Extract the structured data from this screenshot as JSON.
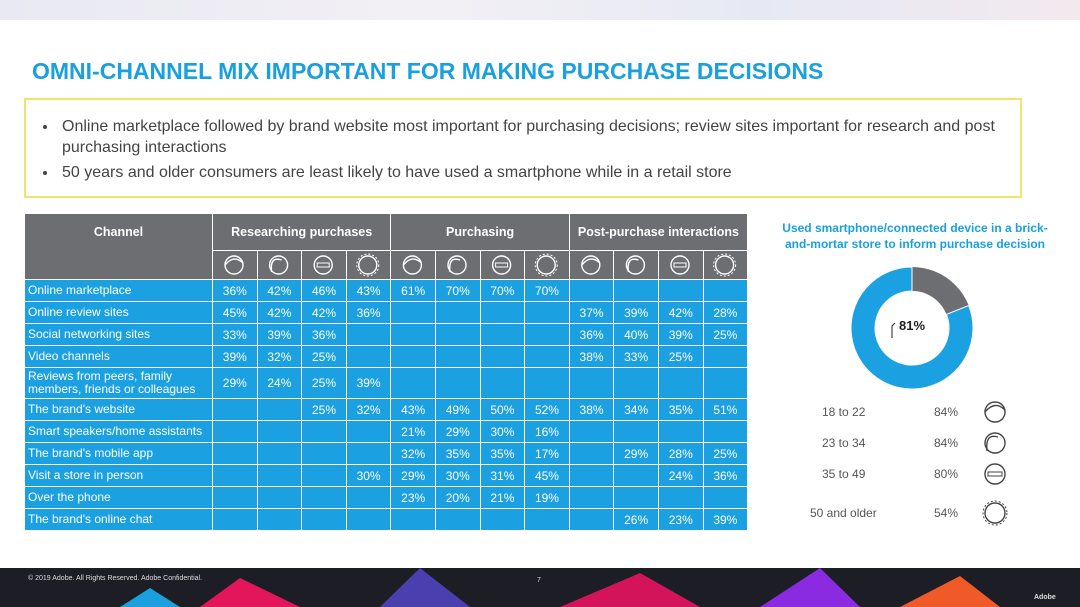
{
  "title": "OMNI-CHANNEL MIX IMPORTANT FOR MAKING PURCHASE DECISIONS",
  "bullets": [
    "Online marketplace followed by brand website most important for purchasing decisions; review sites important for research and post purchasing interactions",
    "50 years and older consumers are least likely to have used a smartphone while in a retail store"
  ],
  "table": {
    "channel_header": "Channel",
    "groups": [
      "Researching purchases",
      "Purchasing",
      "Post-purchase interactions"
    ],
    "rows": [
      {
        "label": "Online marketplace",
        "values": [
          "36%",
          "42%",
          "46%",
          "43%",
          "61%",
          "70%",
          "70%",
          "70%",
          null,
          null,
          null,
          null
        ]
      },
      {
        "label": "Online review sites",
        "values": [
          "45%",
          "42%",
          "42%",
          "36%",
          null,
          null,
          null,
          null,
          "37%",
          "39%",
          "42%",
          "28%"
        ]
      },
      {
        "label": "Social networking sites",
        "values": [
          "33%",
          "39%",
          "36%",
          null,
          null,
          null,
          null,
          null,
          "36%",
          "40%",
          "39%",
          "25%"
        ]
      },
      {
        "label": "Video channels",
        "values": [
          "39%",
          "32%",
          "25%",
          null,
          null,
          null,
          null,
          null,
          "38%",
          "33%",
          "25%",
          null
        ]
      },
      {
        "label": "Reviews from peers, family members, friends or colleagues",
        "values": [
          "29%",
          "24%",
          "25%",
          "39%",
          null,
          null,
          null,
          null,
          null,
          null,
          null,
          null
        ]
      },
      {
        "label": "The brand's website",
        "values": [
          null,
          null,
          "25%",
          "32%",
          "43%",
          "49%",
          "50%",
          "52%",
          "38%",
          "34%",
          "35%",
          "51%"
        ]
      },
      {
        "label": "Smart speakers/home assistants",
        "values": [
          null,
          null,
          null,
          null,
          "21%",
          "29%",
          "30%",
          "16%",
          null,
          null,
          null,
          null
        ]
      },
      {
        "label": "The brand's mobile app",
        "values": [
          null,
          null,
          null,
          null,
          "32%",
          "35%",
          "35%",
          "17%",
          null,
          "29%",
          "28%",
          "25%"
        ]
      },
      {
        "label": "Visit a store in person",
        "values": [
          null,
          null,
          null,
          "30%",
          "29%",
          "30%",
          "31%",
          "45%",
          null,
          null,
          "24%",
          "36%"
        ]
      },
      {
        "label": "Over the phone",
        "values": [
          null,
          null,
          null,
          null,
          "23%",
          "20%",
          "21%",
          "19%",
          null,
          null,
          null,
          null
        ]
      },
      {
        "label": "The brand's online chat",
        "values": [
          null,
          null,
          null,
          null,
          null,
          null,
          null,
          null,
          null,
          "26%",
          "23%",
          "39%"
        ]
      }
    ]
  },
  "donut": {
    "title": "Used smartphone/connected device in a brick-and-mortar store to inform purchase decision",
    "value": 81,
    "label": "81%"
  },
  "ages": [
    {
      "label": "18 to 22",
      "value": "84%"
    },
    {
      "label": "23 to 34",
      "value": "84%"
    },
    {
      "label": "35 to 49",
      "value": "80%"
    },
    {
      "label": "50 and older",
      "value": "54%"
    }
  ],
  "footer": {
    "copyright": "© 2019 Adobe.  All Rights Reserved.  Adobe Confidential.",
    "page": "7",
    "logo": "Adobe"
  }
}
